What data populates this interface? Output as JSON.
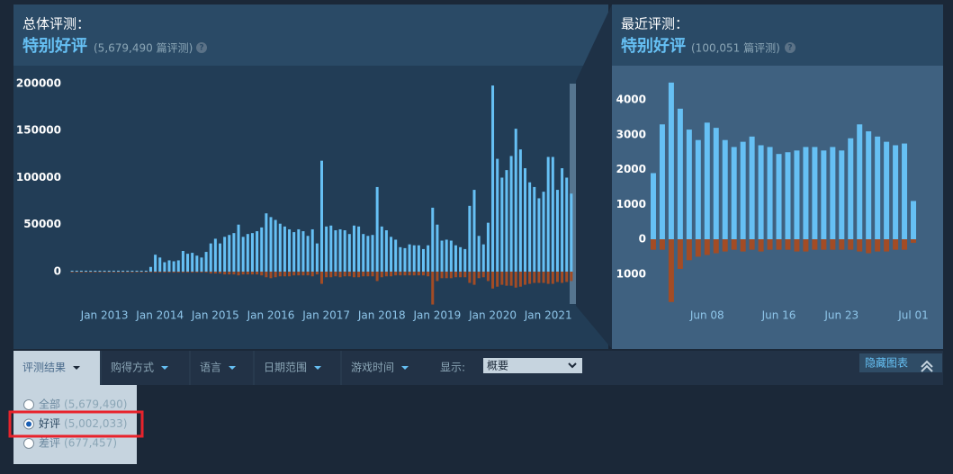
{
  "header": {
    "overall_label": "总体评测：",
    "overall_rating": "特别好评",
    "overall_count": "(5,679,490 篇评测)",
    "overall_help": "?",
    "recent_label": "最近评测：",
    "recent_rating": "特别好评",
    "recent_count": "(100,051 篇评测)",
    "recent_help": "?"
  },
  "filters": {
    "items": [
      "评测结果",
      "购得方式",
      "语言",
      "日期范围",
      "游戏时间"
    ],
    "display_label": "显示:",
    "display_value": "概要",
    "hide_button": "隐藏图表"
  },
  "review_options": [
    {
      "label": "全部",
      "count": "(5,679,490)"
    },
    {
      "label": "好评",
      "count": "(5,002,033)",
      "selected": true
    },
    {
      "label": "差评",
      "count": "(677,457)"
    }
  ],
  "chart_data": [
    {
      "type": "bar",
      "x": [
        "2012-06",
        "2012-07",
        "2012-08",
        "2012-09",
        "2012-10",
        "2012-11",
        "2012-12",
        "2013-01",
        "2013-02",
        "2013-03",
        "2013-04",
        "2013-05",
        "2013-06",
        "2013-07",
        "2013-08",
        "2013-09",
        "2013-10",
        "2013-11",
        "2013-12",
        "2014-01",
        "2014-02",
        "2014-03",
        "2014-04",
        "2014-05",
        "2014-06",
        "2014-07",
        "2014-08",
        "2014-09",
        "2014-10",
        "2014-11",
        "2014-12",
        "2015-01",
        "2015-02",
        "2015-03",
        "2015-04",
        "2015-05",
        "2015-06",
        "2015-07",
        "2015-08",
        "2015-09",
        "2015-10",
        "2015-11",
        "2015-12",
        "2016-01",
        "2016-02",
        "2016-03",
        "2016-04",
        "2016-05",
        "2016-06",
        "2016-07",
        "2016-08",
        "2016-09",
        "2016-10",
        "2016-11",
        "2016-12",
        "2017-01",
        "2017-02",
        "2017-03",
        "2017-04",
        "2017-05",
        "2017-06",
        "2017-07",
        "2017-08",
        "2017-09",
        "2017-10",
        "2017-11",
        "2017-12",
        "2018-01",
        "2018-02",
        "2018-03",
        "2018-04",
        "2018-05",
        "2018-06",
        "2018-07",
        "2018-08",
        "2018-09",
        "2018-10",
        "2018-11",
        "2018-12",
        "2019-01",
        "2019-02",
        "2019-03",
        "2019-04",
        "2019-05",
        "2019-06",
        "2019-07",
        "2019-08",
        "2019-09",
        "2019-10",
        "2019-11",
        "2019-12",
        "2020-01",
        "2020-02",
        "2020-03",
        "2020-04",
        "2020-05",
        "2020-06",
        "2020-07",
        "2020-08",
        "2020-09",
        "2020-10",
        "2020-11",
        "2020-12",
        "2021-01",
        "2021-02",
        "2021-03",
        "2021-04",
        "2021-05",
        "2021-06"
      ],
      "xlim": [
        "2012-05",
        "2021-07"
      ],
      "xticks": [
        {
          "value": "2013-01",
          "label": "Jan 2013"
        },
        {
          "value": "2014-01",
          "label": "Jan 2014"
        },
        {
          "value": "2015-01",
          "label": "Jan 2015"
        },
        {
          "value": "2016-01",
          "label": "Jan 2016"
        },
        {
          "value": "2017-01",
          "label": "Jan 2017"
        },
        {
          "value": "2018-01",
          "label": "Jan 2018"
        },
        {
          "value": "2019-01",
          "label": "Jan 2019"
        },
        {
          "value": "2020-01",
          "label": "Jan 2020"
        },
        {
          "value": "2021-01",
          "label": "Jan 2021"
        }
      ],
      "ylim": [
        -40000,
        215000
      ],
      "yticks": [
        0,
        50000,
        100000,
        150000,
        200000
      ],
      "series": [
        {
          "color": "#66c0f4",
          "values": [
            1000,
            1000,
            1000,
            1000,
            1000,
            1000,
            1000,
            1000,
            1000,
            1000,
            1000,
            1000,
            1000,
            1000,
            1000,
            1000,
            1000,
            5000,
            18000,
            15000,
            10000,
            12000,
            11000,
            12000,
            22000,
            19000,
            20000,
            17000,
            15000,
            21000,
            30000,
            35000,
            30000,
            37000,
            39000,
            41000,
            50000,
            37000,
            40000,
            41000,
            43000,
            47000,
            62000,
            58000,
            55000,
            51000,
            48000,
            45000,
            42000,
            45000,
            43000,
            38000,
            45000,
            30000,
            118000,
            48000,
            49000,
            44000,
            45000,
            44000,
            40000,
            49000,
            48000,
            40000,
            38000,
            39000,
            90000,
            48000,
            44000,
            37000,
            34000,
            26000,
            25000,
            29000,
            28000,
            28000,
            24000,
            28000,
            68000,
            50000,
            33000,
            34000,
            33000,
            28000,
            26000,
            24000,
            70000,
            87000,
            38000,
            29000,
            52000,
            198000,
            120000,
            100000,
            108000,
            123000,
            152000,
            130000,
            110000,
            95000,
            90000,
            78000,
            85000,
            122000,
            122000,
            87000,
            110000,
            100000,
            83000
          ]
        },
        {
          "color": "#a34c25",
          "values": [
            -300,
            -300,
            -300,
            -300,
            -300,
            -300,
            -300,
            -300,
            -300,
            -300,
            -300,
            -300,
            -300,
            -300,
            -300,
            -300,
            -300,
            -300,
            -1000,
            -1000,
            -1000,
            -1000,
            -1000,
            -1000,
            -1000,
            -1000,
            -1000,
            -1000,
            -1000,
            -1000,
            -2000,
            -2000,
            -2000,
            -3000,
            -3000,
            -3000,
            -4000,
            -3000,
            -3000,
            -3000,
            -3000,
            -4000,
            -6000,
            -7000,
            -6000,
            -5000,
            -5000,
            -5000,
            -4000,
            -4000,
            -4000,
            -4000,
            -5000,
            -3000,
            -13000,
            -6000,
            -6000,
            -5000,
            -6000,
            -5000,
            -5000,
            -6000,
            -6000,
            -5000,
            -5000,
            -5000,
            -10000,
            -6000,
            -5000,
            -5000,
            -4000,
            -4000,
            -4000,
            -4000,
            -4000,
            -4000,
            -4000,
            -5000,
            -35000,
            -10000,
            -7000,
            -7000,
            -7000,
            -6000,
            -6000,
            -6000,
            -12000,
            -14000,
            -7000,
            -6000,
            -10000,
            -18000,
            -16000,
            -14000,
            -15000,
            -15000,
            -17000,
            -16000,
            -14000,
            -13000,
            -12000,
            -12000,
            -12000,
            -13000,
            -13000,
            -11000,
            -12000,
            -11000,
            -10000
          ]
        }
      ]
    },
    {
      "type": "bar",
      "categories": [
        null,
        null,
        null,
        null,
        null,
        null,
        "Jun 08",
        null,
        null,
        null,
        null,
        null,
        null,
        null,
        "Jun 16",
        null,
        null,
        null,
        null,
        null,
        null,
        "Jun 23",
        null,
        null,
        null,
        null,
        null,
        null,
        null,
        "Jul 01"
      ],
      "ylim": [
        -2000,
        4650
      ],
      "yticks": [
        {
          "value": -1000,
          "label": "1000"
        },
        0,
        1000,
        2000,
        3000,
        4000
      ],
      "series": [
        {
          "color": "#66c0f4",
          "values": [
            1900,
            3300,
            4500,
            3750,
            3150,
            2850,
            3350,
            3200,
            2850,
            2650,
            2800,
            2950,
            2700,
            2650,
            2450,
            2500,
            2550,
            2650,
            2650,
            2550,
            2650,
            2550,
            2900,
            3300,
            3100,
            2950,
            2800,
            2700,
            2750,
            1100
          ]
        },
        {
          "color": "#a34c25",
          "values": [
            -300,
            -300,
            -1800,
            -850,
            -600,
            -500,
            -450,
            -400,
            -350,
            -300,
            -350,
            -300,
            -350,
            -300,
            -300,
            -300,
            -350,
            -350,
            -300,
            -300,
            -300,
            -300,
            -300,
            -350,
            -400,
            -350,
            -350,
            -300,
            -300,
            -100
          ]
        }
      ]
    }
  ]
}
